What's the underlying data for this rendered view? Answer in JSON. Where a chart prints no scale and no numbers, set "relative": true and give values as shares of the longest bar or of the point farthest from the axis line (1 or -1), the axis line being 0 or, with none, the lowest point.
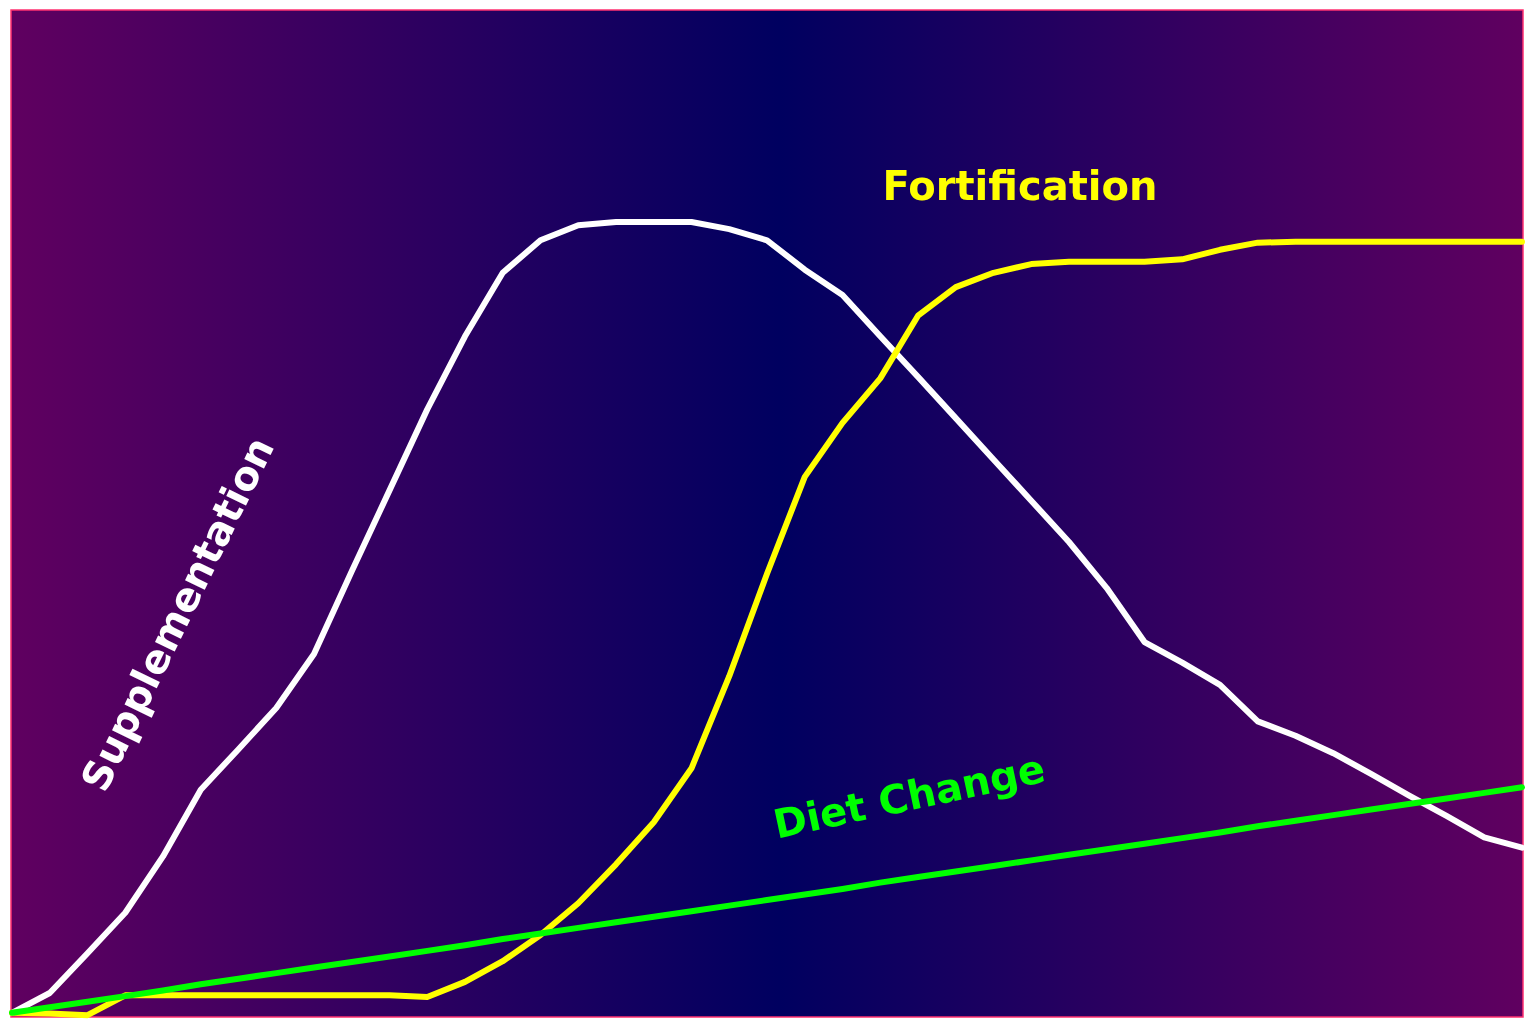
{
  "chart_data": {
    "type": "line",
    "relative": true,
    "categories": [
      null,
      null,
      null,
      null,
      null,
      null,
      null,
      null,
      null,
      null,
      null,
      null,
      null,
      null,
      null,
      null,
      null,
      null,
      null,
      null,
      null,
      null,
      null,
      null,
      null,
      null,
      null,
      null,
      null,
      null,
      null,
      null,
      null,
      null,
      null,
      null,
      null,
      null,
      null,
      null,
      null
    ],
    "series": [
      {
        "name": "Supplementation",
        "color": "#ffffff",
        "values": [
          0.004,
          0.029,
          0.079,
          0.13,
          0.201,
          0.285,
          0.336,
          0.388,
          0.456,
          0.56,
          0.662,
          0.764,
          0.856,
          0.936,
          0.977,
          0.996,
          1.0,
          1.0,
          1.0,
          0.991,
          0.977,
          0.94,
          0.908,
          0.856,
          0.805,
          0.753,
          0.701,
          0.649,
          0.597,
          0.539,
          0.471,
          0.445,
          0.417,
          0.371,
          0.353,
          0.331,
          0.305,
          0.278,
          0.252,
          0.225,
          0.212
        ]
      },
      {
        "name": "Fortification",
        "color": "#ffff00",
        "values": [
          0.004,
          0.003,
          0.001,
          0.026,
          0.026,
          0.026,
          0.026,
          0.026,
          0.026,
          0.026,
          0.026,
          0.024,
          0.043,
          0.069,
          0.102,
          0.142,
          0.191,
          0.244,
          0.312,
          0.428,
          0.557,
          0.679,
          0.747,
          0.803,
          0.882,
          0.918,
          0.936,
          0.947,
          0.95,
          0.95,
          0.95,
          0.953,
          0.965,
          0.974,
          0.975,
          0.975,
          0.975,
          0.975,
          0.975,
          0.975,
          0.975
        ]
      },
      {
        "name": "Diet Change",
        "color": "#00ff00",
        "values": [
          0.004,
          0.011,
          0.018,
          0.025,
          0.032,
          0.04,
          0.047,
          0.054,
          0.061,
          0.068,
          0.075,
          0.082,
          0.089,
          0.097,
          0.104,
          0.111,
          0.118,
          0.125,
          0.132,
          0.139,
          0.146,
          0.153,
          0.16,
          0.168,
          0.175,
          0.182,
          0.189,
          0.196,
          0.203,
          0.21,
          0.217,
          0.224,
          0.231,
          0.239,
          0.246,
          0.253,
          0.26,
          0.267,
          0.274,
          0.281,
          0.288
        ]
      }
    ]
  }
}
